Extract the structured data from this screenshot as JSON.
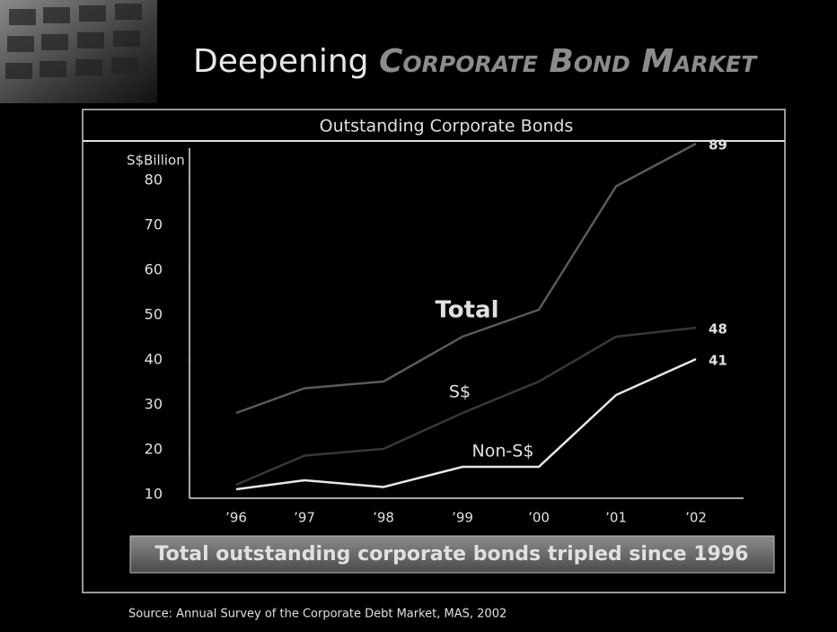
{
  "header": {
    "lead": "Deepening",
    "emphasis": "Corporate Bond Market"
  },
  "chart_data": {
    "type": "line",
    "title": "Outstanding Corporate Bonds",
    "y_label": "S$Billion",
    "categories": [
      "’96",
      "’97",
      "’98",
      "’99",
      "’00",
      "’01",
      "’02"
    ],
    "series": [
      {
        "name": "Total",
        "color": "#5a5a5a",
        "values": [
          29,
          34.5,
          36,
          46,
          52,
          79.5,
          89
        ]
      },
      {
        "name": "S$",
        "color": "#383838",
        "values": [
          13,
          19.5,
          21,
          29,
          36,
          46,
          48
        ]
      },
      {
        "name": "Non-S$",
        "color": "#e6e6e6",
        "values": [
          12,
          14,
          12.5,
          17,
          17,
          33,
          41
        ]
      }
    ],
    "ylim": [
      10,
      88
    ],
    "yticks": [
      10,
      20,
      30,
      40,
      50,
      60,
      70,
      80
    ]
  },
  "callout": "Total outstanding corporate bonds tripled since 1996",
  "source": "Source: Annual Survey of the Corporate Debt Market, MAS, 2002"
}
